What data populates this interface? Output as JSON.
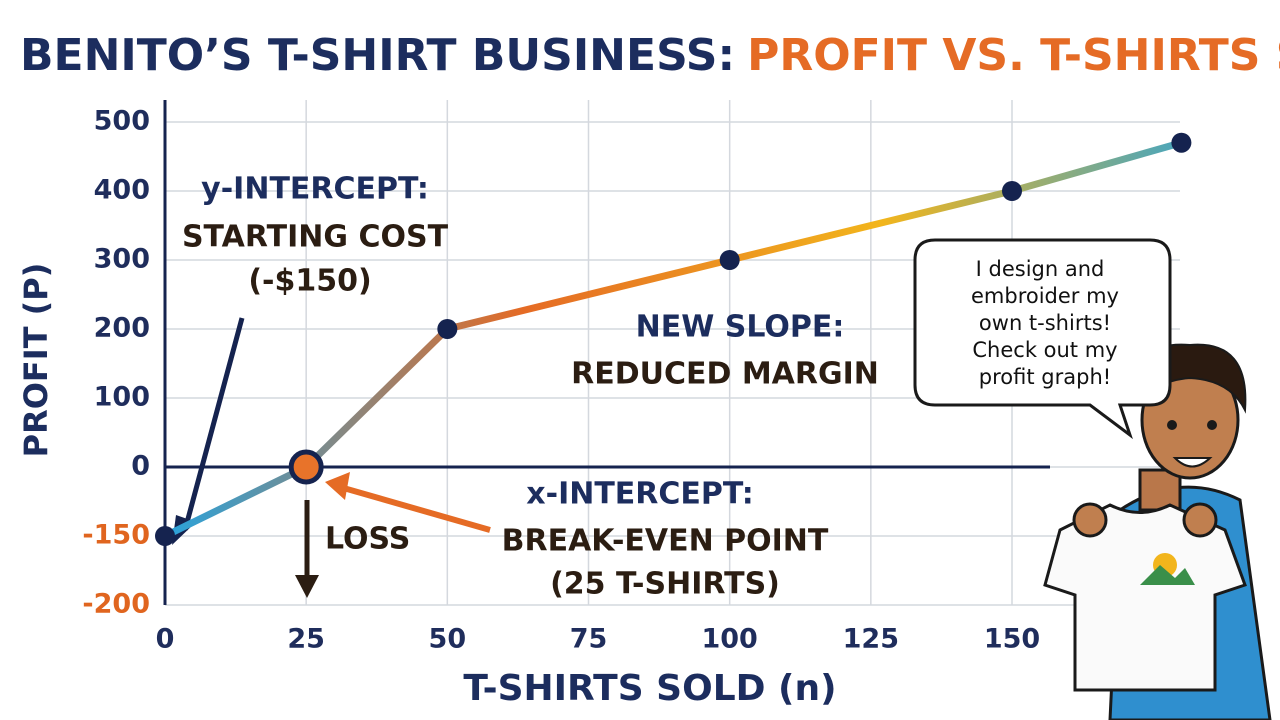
{
  "chart_data": {
    "type": "line",
    "title": "BENITO’S T-SHIRT BUSINESS:",
    "title_highlight": "PROFIT VS. T-SHIRTS SOLD",
    "x_label": "T-SHIRTS SOLD (n)",
    "y_label": "PROFIT (P)",
    "x": [
      0,
      25,
      50,
      100,
      150,
      180
    ],
    "series": [
      {
        "name": "Profit",
        "values": [
          -150,
          0,
          200,
          300,
          400,
          470
        ]
      }
    ],
    "line_colors": [
      "#29a3dc",
      "#e56b25",
      "#f2b51c",
      "#29a3dc"
    ],
    "marker_color": "#15234f",
    "break_even_color": "#e8732a",
    "xlim": [
      0,
      190
    ],
    "xticks": [
      0,
      25,
      50,
      75,
      100,
      125,
      150
    ],
    "ylim": [
      -200,
      500
    ],
    "yticks": [
      -200,
      -150,
      0,
      100,
      200,
      300,
      400,
      500
    ],
    "tick_color": "#1f2d5c",
    "negative_tick_color": "#e0651f",
    "grid": true,
    "annotations": {
      "y_intercept": [
        "y-INTERCEPT:",
        "STARTING COST",
        "(-$150)"
      ],
      "new_slope": [
        "NEW SLOPE:",
        "REDUCED MARGIN"
      ],
      "loss": "LOSS",
      "x_intercept": [
        "x-INTERCEPT:",
        "BREAK-EVEN POINT",
        "(25 T-SHIRTS)"
      ],
      "speech": [
        "I design and",
        "embroider my",
        "own t-shirts!",
        "Check out my",
        "profit graph!"
      ]
    }
  }
}
